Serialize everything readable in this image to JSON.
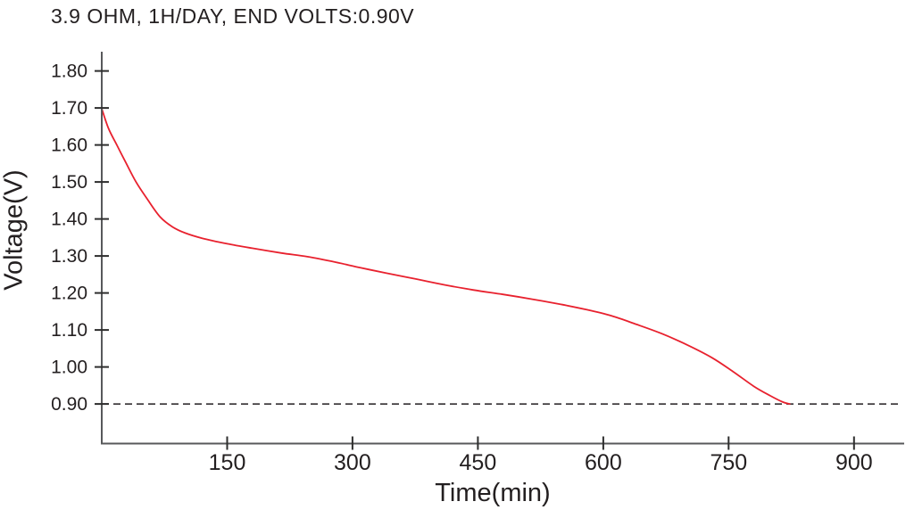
{
  "chart": {
    "title": "3.9 OHM, 1H/DAY, END VOLTS:0.90V",
    "x_axis_title": "Time(min)",
    "y_axis_title": "Voltage(V)"
  },
  "chart_data": {
    "type": "line",
    "title": "3.9 OHM, 1H/DAY, END VOLTS:0.90V",
    "xlabel": "Time(min)",
    "ylabel": "Voltage(V)",
    "xlim": [
      0,
      960
    ],
    "ylim": [
      0.793,
      1.852
    ],
    "x_ticks": [
      150,
      300,
      450,
      600,
      750,
      900
    ],
    "x_tick_labels": [
      "150",
      "300",
      "450",
      "600",
      "750",
      "900"
    ],
    "y_ticks": [
      1.8,
      1.7,
      1.6,
      1.5,
      1.4,
      1.3,
      1.2,
      1.1,
      1.0,
      0.9
    ],
    "y_tick_labels": [
      "1.80",
      "1.70",
      "1.60",
      "1.50",
      "1.40",
      "1.30",
      "1.20",
      "1.10",
      "1.00",
      "0.90"
    ],
    "grid": false,
    "legend": false,
    "reference_line": {
      "y": 0.9,
      "style": "dashed",
      "meaning": "end voltage 0.90V"
    },
    "series": [
      {
        "name": "discharge curve",
        "color": "#e8212e",
        "points": [
          [
            0,
            1.698
          ],
          [
            8,
            1.645
          ],
          [
            18,
            1.6
          ],
          [
            28,
            1.556
          ],
          [
            41,
            1.5
          ],
          [
            55,
            1.452
          ],
          [
            70,
            1.405
          ],
          [
            85,
            1.378
          ],
          [
            100,
            1.362
          ],
          [
            120,
            1.348
          ],
          [
            150,
            1.333
          ],
          [
            180,
            1.321
          ],
          [
            215,
            1.308
          ],
          [
            246,
            1.298
          ],
          [
            280,
            1.283
          ],
          [
            310,
            1.268
          ],
          [
            340,
            1.254
          ],
          [
            375,
            1.238
          ],
          [
            410,
            1.222
          ],
          [
            445,
            1.208
          ],
          [
            480,
            1.196
          ],
          [
            515,
            1.183
          ],
          [
            550,
            1.169
          ],
          [
            580,
            1.155
          ],
          [
            610,
            1.138
          ],
          [
            640,
            1.115
          ],
          [
            670,
            1.09
          ],
          [
            700,
            1.06
          ],
          [
            730,
            1.025
          ],
          [
            755,
            0.988
          ],
          [
            780,
            0.948
          ],
          [
            800,
            0.922
          ],
          [
            815,
            0.905
          ],
          [
            823,
            0.9
          ]
        ]
      }
    ]
  },
  "colors": {
    "background": "#ffffff",
    "text": "#231f20",
    "axis": "#58595b",
    "tick": "#2e2e2e",
    "curve": "#e8212e",
    "dashed_line": "#231f20"
  }
}
